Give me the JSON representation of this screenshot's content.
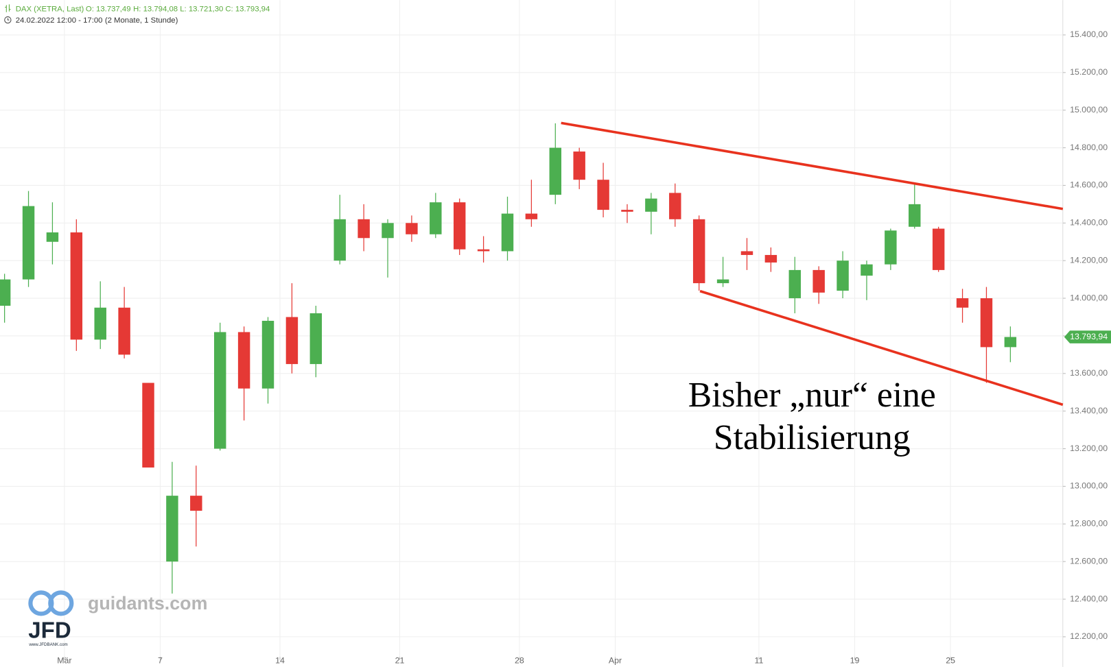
{
  "chart_data": {
    "type": "candlestick",
    "header": {
      "symbol": "DAX (XETRA, Last)",
      "open": "O: 13.737,49",
      "high": "H: 13.794,08",
      "low": "L: 13.721,30",
      "close": "C: 13.793,94",
      "period": "24.02.2022 12:00 - 17:00",
      "range": "(2 Monate, 1 Stunde)"
    },
    "x": [
      0.5,
      1.5,
      2.5,
      3.5,
      4.5,
      5.5,
      6.5,
      7.5,
      8.5,
      9.5,
      10.5,
      11.5,
      12.5,
      13.5,
      14.5,
      15.5,
      16.5,
      17.5,
      18.5,
      19.5,
      20.5,
      21.5,
      22.5,
      23.5,
      24.5,
      25.5,
      26.5,
      27.5,
      28.5,
      29.5,
      30.5,
      31.5,
      32.5,
      33.5,
      34.5,
      35.5,
      36.5,
      37.5,
      38.5,
      39.5,
      40.5,
      41.5,
      42.5
    ],
    "open": [
      13960,
      14100,
      14300,
      14350,
      13780,
      13950,
      13550,
      12600,
      12950,
      13200,
      13820,
      13520,
      13900,
      13650,
      14200,
      14420,
      14320,
      14400,
      14340,
      14510,
      14260,
      14250,
      14450,
      14550,
      14780,
      14630,
      14470,
      14460,
      14560,
      14420,
      14080,
      14250,
      14230,
      14000,
      14150,
      14040,
      14120,
      14180,
      14380,
      14370,
      14000,
      14000,
      13740
    ],
    "high": [
      14130,
      14570,
      14510,
      14420,
      14090,
      14060,
      13550,
      13130,
      13110,
      13870,
      13850,
      13900,
      14080,
      13960,
      14550,
      14500,
      14420,
      14440,
      14560,
      14530,
      14330,
      14540,
      14630,
      14930,
      14800,
      14720,
      14500,
      14560,
      14610,
      14440,
      14220,
      14320,
      14270,
      14220,
      14170,
      14250,
      14200,
      14370,
      14610,
      14380,
      14050,
      14060,
      13850
    ],
    "low": [
      13870,
      14060,
      14180,
      13720,
      13730,
      13680,
      13100,
      12430,
      12680,
      13190,
      13350,
      13440,
      13600,
      13580,
      14180,
      14250,
      14110,
      14300,
      14320,
      14230,
      14190,
      14200,
      14380,
      14500,
      14580,
      14430,
      14400,
      14340,
      14380,
      14040,
      14060,
      14150,
      14140,
      13920,
      13970,
      14000,
      13990,
      14150,
      14370,
      14140,
      13870,
      13550,
      13660
    ],
    "close": [
      14100,
      14490,
      14350,
      13780,
      13950,
      13700,
      13100,
      12950,
      12870,
      13820,
      13520,
      13880,
      13650,
      13920,
      14420,
      14320,
      14400,
      14340,
      14510,
      14260,
      14250,
      14450,
      14420,
      14800,
      14630,
      14470,
      14460,
      14530,
      14420,
      14080,
      14100,
      14230,
      14190,
      14150,
      14030,
      14200,
      14180,
      14360,
      14500,
      14150,
      13950,
      13740,
      13793.94
    ],
    "up_color": "#4caf50",
    "down_color": "#e53935",
    "xlim": [
      0.31,
      44.69
    ],
    "xticks": [
      {
        "value": 3,
        "label": "Mär"
      },
      {
        "value": 7,
        "label": "7"
      },
      {
        "value": 12,
        "label": "14"
      },
      {
        "value": 17,
        "label": "21"
      },
      {
        "value": 22,
        "label": "28"
      },
      {
        "value": 26,
        "label": "Apr"
      },
      {
        "value": 32,
        "label": "11"
      },
      {
        "value": 36,
        "label": "19"
      },
      {
        "value": 40,
        "label": "25"
      }
    ],
    "ylim": [
      12040,
      15585
    ],
    "yticks": [
      {
        "value": 12200,
        "label": "12.200,00"
      },
      {
        "value": 12400,
        "label": "12.400,00"
      },
      {
        "value": 12600,
        "label": "12.600,00"
      },
      {
        "value": 12800,
        "label": "12.800,00"
      },
      {
        "value": 13000,
        "label": "13.000,00"
      },
      {
        "value": 13200,
        "label": "13.200,00"
      },
      {
        "value": 13400,
        "label": "13.400,00"
      },
      {
        "value": 13600,
        "label": "13.600,00"
      },
      {
        "value": 13800,
        "label": "13.800,00"
      },
      {
        "value": 14000,
        "label": "14.000,00"
      },
      {
        "value": 14200,
        "label": "14.200,00"
      },
      {
        "value": 14400,
        "label": "14.400,00"
      },
      {
        "value": 14600,
        "label": "14.600,00"
      },
      {
        "value": 14800,
        "label": "14.800,00"
      },
      {
        "value": 15000,
        "label": "15.000,00"
      },
      {
        "value": 15200,
        "label": "15.200,00"
      },
      {
        "value": 15400,
        "label": "15.400,00"
      }
    ],
    "grid": true,
    "last_price": {
      "value": 13793.94,
      "label": "13.793,94"
    },
    "trendlines": [
      {
        "color": "#e8321e",
        "x": [
          23.74,
          44.69
        ],
        "y": [
          14932,
          14475
        ]
      },
      {
        "color": "#e8321e",
        "x": [
          29.54,
          44.69
        ],
        "y": [
          14038,
          13434
        ]
      }
    ],
    "annotation": [
      "Bisher „nur“ eine",
      "Stabilisierung"
    ],
    "logo": {
      "site": "guidants.com",
      "brand": "JFD",
      "url": "www.JFDBANK.com"
    }
  }
}
